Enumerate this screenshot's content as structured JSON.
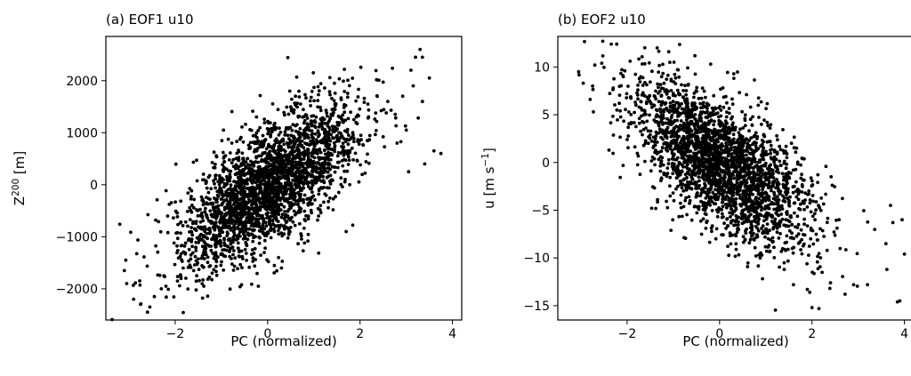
{
  "chart_data": [
    {
      "type": "scatter",
      "title": "(a) EOF1 u10",
      "xlabel": "PC (normalized)",
      "ylabel": "Z",
      "ylabel_sup": "200",
      "ylabel_unit": " [m]",
      "xlim": [
        -3.5,
        4.2
      ],
      "ylim": [
        -2600,
        2850
      ],
      "xticks": [
        -2,
        0,
        2,
        4
      ],
      "xtick_labels": [
        "−2",
        "0",
        "2",
        "4"
      ],
      "yticks": [
        -2000,
        -1000,
        0,
        1000,
        2000
      ],
      "ytick_labels": [
        "−2000",
        "−1000",
        "0",
        "1000",
        "2000"
      ],
      "grid": false,
      "marker_color": "#000000",
      "n_points": 2600,
      "slope": 550,
      "noise": 560,
      "seed": 7,
      "points": [
        [
          -3.2,
          -760
        ],
        [
          -3.1,
          -1650
        ],
        [
          -3.05,
          -1900
        ],
        [
          -2.9,
          -2200
        ],
        [
          -2.75,
          -2300
        ],
        [
          -2.6,
          -2450
        ],
        [
          -2.55,
          -2350
        ],
        [
          -2.45,
          -2150
        ],
        [
          -2.3,
          -2000
        ],
        [
          -2.2,
          -1950
        ],
        [
          -1.95,
          -1850
        ],
        [
          -1.6,
          -1650
        ],
        [
          -1.2,
          -1700
        ],
        [
          -0.2,
          -1950
        ],
        [
          0.3,
          -1600
        ],
        [
          1.7,
          -900
        ],
        [
          2.6,
          1600
        ],
        [
          2.8,
          800
        ],
        [
          3.0,
          1050
        ],
        [
          3.05,
          250
        ],
        [
          3.1,
          2200
        ],
        [
          3.15,
          1900
        ],
        [
          3.2,
          2450
        ],
        [
          3.3,
          2600
        ],
        [
          3.35,
          2450
        ],
        [
          3.35,
          1600
        ],
        [
          3.4,
          400
        ],
        [
          3.5,
          2050
        ],
        [
          3.6,
          650
        ],
        [
          3.75,
          600
        ]
      ]
    },
    {
      "type": "scatter",
      "title": "(b) EOF2 u10",
      "xlabel": "PC (normalized)",
      "ylabel": "u [m s",
      "ylabel_sup": "−1",
      "ylabel_unit": "]",
      "xlim": [
        -3.5,
        4.2
      ],
      "ylim": [
        -16.5,
        13.2
      ],
      "xticks": [
        -2,
        0,
        2,
        4
      ],
      "xtick_labels": [
        "−2",
        "0",
        "2",
        "4"
      ],
      "yticks": [
        -15,
        -10,
        -5,
        0,
        5,
        10
      ],
      "ytick_labels": [
        "−15",
        "−10",
        "−5",
        "0",
        "5",
        "10"
      ],
      "grid": false,
      "marker_color": "#000000",
      "n_points": 2600,
      "slope": -2.9,
      "noise": 3.3,
      "seed": 19,
      "points": [
        [
          -3.05,
          9.5
        ],
        [
          -2.95,
          8.3
        ],
        [
          -2.8,
          6.6
        ],
        [
          -2.7,
          10.2
        ],
        [
          -2.55,
          10.4
        ],
        [
          -2.3,
          7.8
        ],
        [
          -2.05,
          9.6
        ],
        [
          -1.35,
          12.0
        ],
        [
          -1.1,
          11.6
        ],
        [
          1.4,
          -11.2
        ],
        [
          1.6,
          -12.8
        ],
        [
          1.9,
          -13.3
        ],
        [
          2.0,
          -15.2
        ],
        [
          2.15,
          -15.3
        ],
        [
          2.4,
          -12.6
        ],
        [
          2.9,
          -12.8
        ],
        [
          3.2,
          -12.8
        ],
        [
          3.6,
          -8.5
        ],
        [
          3.75,
          -6.3
        ],
        [
          3.85,
          -14.6
        ],
        [
          3.9,
          -14.5
        ],
        [
          3.95,
          -6.0
        ],
        [
          4.0,
          -9.6
        ],
        [
          3.7,
          -4.5
        ]
      ]
    }
  ]
}
